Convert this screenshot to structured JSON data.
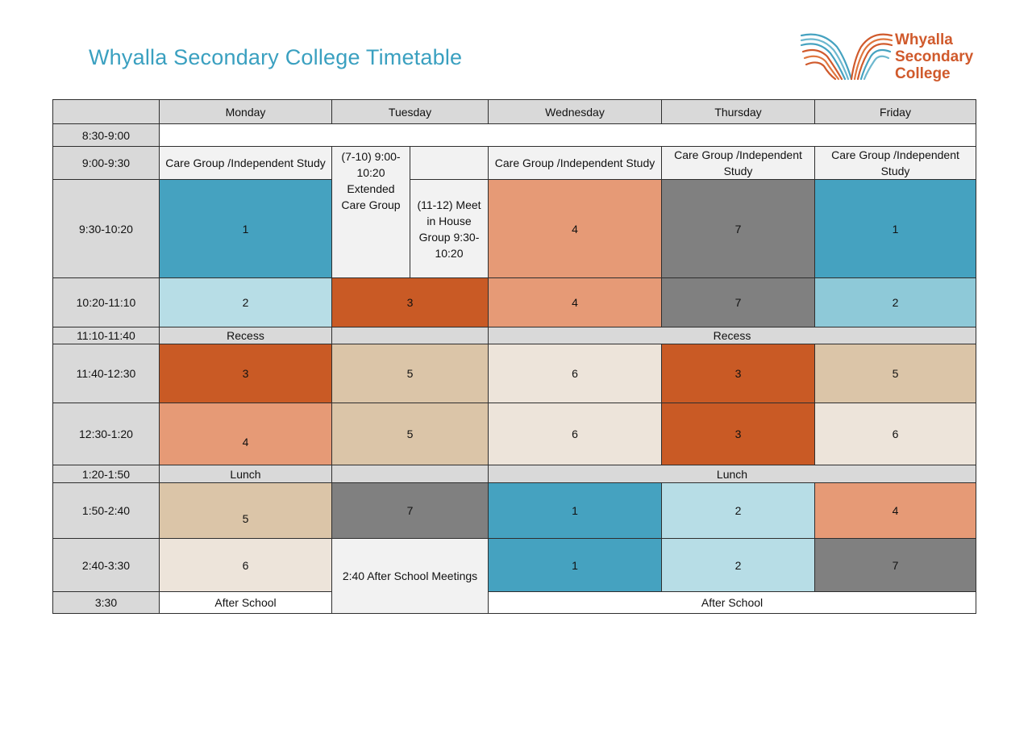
{
  "title": "Whyalla Secondary College Timetable",
  "logo": {
    "line1": "Whyalla",
    "line2": "Secondary",
    "line3": "College",
    "icon": "wave-wings-logo-icon"
  },
  "colors": {
    "title": "#3aa0c0",
    "brand_orange": "#d05a2c",
    "period_1": "#45a2c0",
    "period_2": "#b7dde6",
    "period_3": "#c95a25",
    "period_4": "#e69a76",
    "period_5": "#dbc5a8",
    "period_6": "#ede4da",
    "period_7": "#808080"
  },
  "days": [
    "Monday",
    "Tuesday",
    "Wednesday",
    "Thursday",
    "Friday"
  ],
  "times": [
    "8:30-9:00",
    "9:00-9:30",
    "9:30-10:20",
    "10:20-11:10",
    "11:10-11:40",
    "11:40-12:30",
    "12:30-1:20",
    "1:20-1:50",
    "1:50-2:40",
    "2:40-3:30",
    "3:30"
  ],
  "care_group": "Care Group /Independent Study",
  "tuesday": {
    "extended_care": "(7-10) 9:00-10:20 Extended Care Group",
    "house_group": "(11-12) Meet in House Group 9:30-10:20",
    "after_school_meetings": "2:40 After School Meetings"
  },
  "labels": {
    "recess": "Recess",
    "lunch": "Lunch",
    "after_school": "After School"
  },
  "periods": {
    "r930": {
      "mon": "1",
      "wed": "4",
      "thu": "7",
      "fri": "1"
    },
    "r1020": {
      "mon": "2",
      "tue": "3",
      "wed": "4",
      "thu": "7",
      "fri": "2"
    },
    "r1140": {
      "mon": "3",
      "tue": "5",
      "wed": "6",
      "thu": "3",
      "fri": "5"
    },
    "r1230": {
      "mon": "4",
      "tue": "5",
      "wed": "6",
      "thu": "3",
      "fri": "6"
    },
    "r150": {
      "mon": "5",
      "tue": "7",
      "wed": "1",
      "thu": "2",
      "fri": "4"
    },
    "r240": {
      "mon": "6",
      "wed": "1",
      "thu": "2",
      "fri": "7"
    }
  }
}
